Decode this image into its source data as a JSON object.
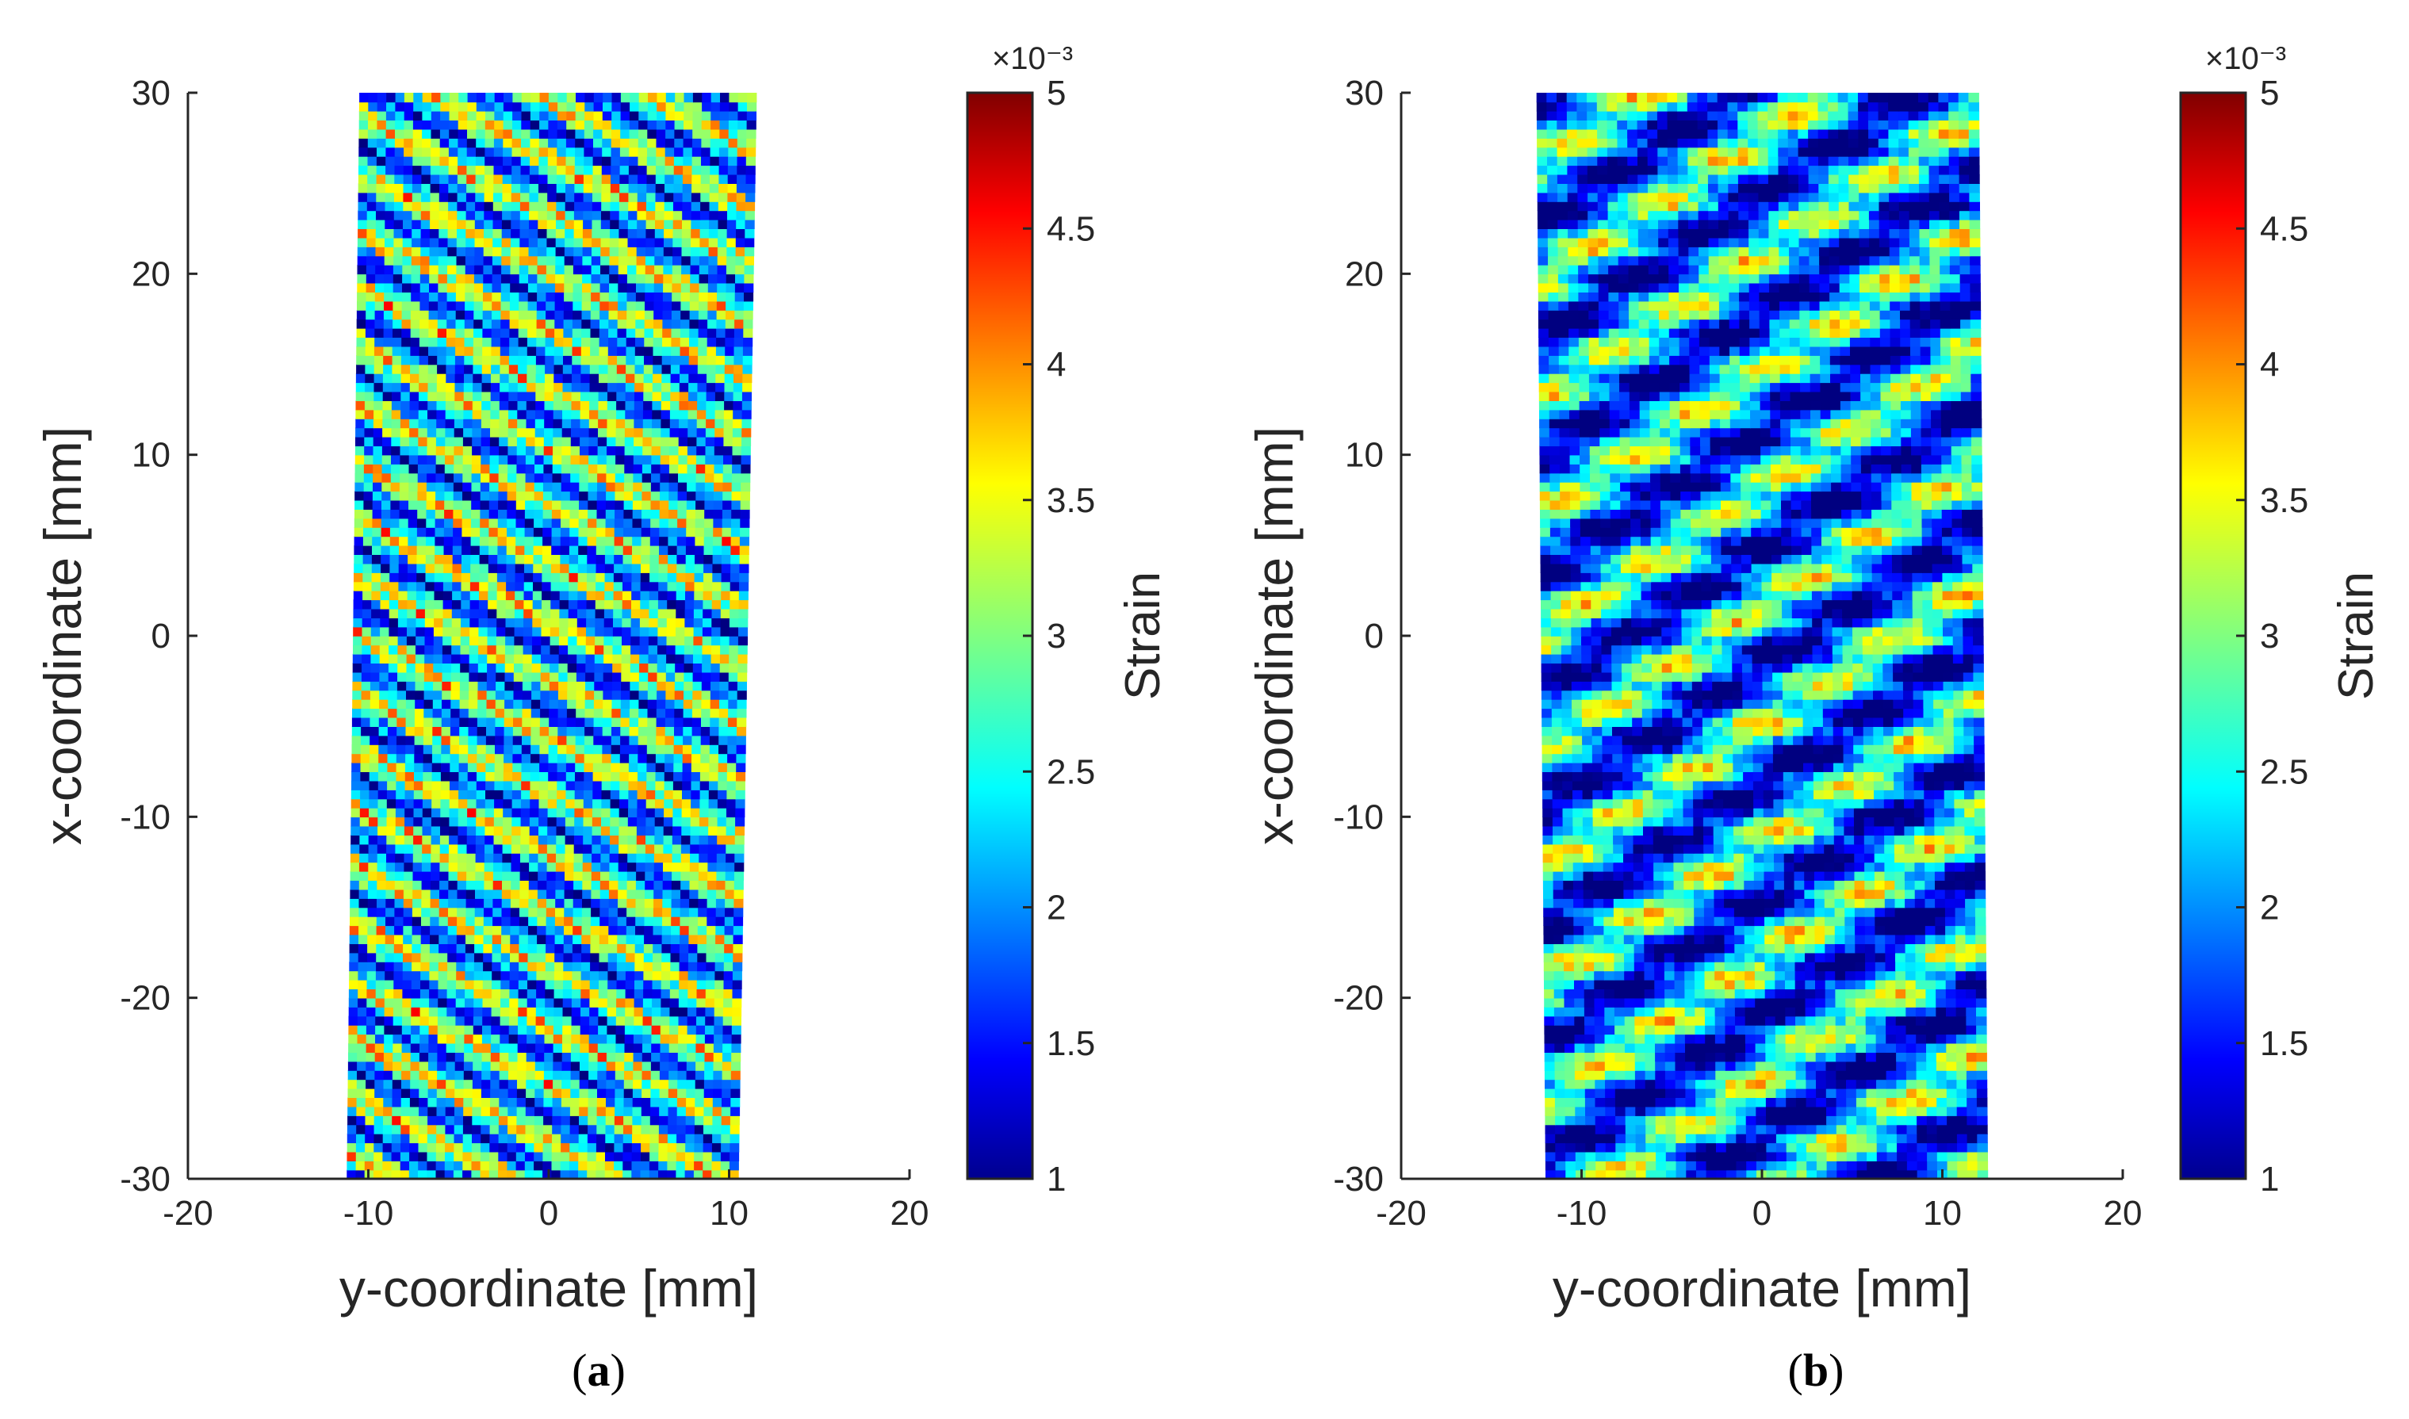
{
  "chart_data": [
    {
      "type": "heatmap",
      "panel": "a",
      "caption_letter": "a",
      "xlabel": "y-coordinate [mm]",
      "ylabel": "x-coordinate [mm]",
      "xlim": [
        -20,
        20
      ],
      "ylim": [
        -30,
        30
      ],
      "xticks": [
        "-20",
        "-10",
        "0",
        "10",
        "20"
      ],
      "yticks": [
        "-30",
        "-20",
        "-10",
        "0",
        "10",
        "20",
        "30"
      ],
      "data_region": {
        "x_at_top": [
          -10.5,
          11.5
        ],
        "x_at_bottom": [
          -11.2,
          10.5
        ],
        "y": [
          -30,
          30
        ]
      },
      "pattern": "diagonal bands descending to the right, fine mottled texture",
      "mean_strain_e3": 2.5,
      "band_slope_deg": -28,
      "band_period_mm": 3.2,
      "colorbar": {
        "label": "Strain",
        "multiplier": "×10⁻³",
        "range": [
          1,
          5
        ],
        "ticks": [
          "1",
          "1.5",
          "2",
          "2.5",
          "3",
          "3.5",
          "4",
          "4.5",
          "5"
        ],
        "colormap": "jet"
      }
    },
    {
      "type": "heatmap",
      "panel": "b",
      "caption_letter": "b",
      "xlabel": "y-coordinate [mm]",
      "ylabel": "x-coordinate [mm]",
      "xlim": [
        -20,
        20
      ],
      "ylim": [
        -30,
        30
      ],
      "xticks": [
        "-20",
        "-10",
        "0",
        "10",
        "20"
      ],
      "yticks": [
        "-30",
        "-20",
        "-10",
        "0",
        "10",
        "20",
        "30"
      ],
      "data_region": {
        "x_at_top": [
          -12.5,
          12
        ],
        "x_at_bottom": [
          -12,
          12.5
        ],
        "y": [
          -30,
          30
        ]
      },
      "pattern": "diagonal bands ascending to the right, wide low-strain blue stripes",
      "mean_strain_e3": 2.1,
      "band_slope_deg": 33,
      "band_period_mm": 6.5,
      "colorbar": {
        "label": "Strain",
        "multiplier": "×10⁻³",
        "range": [
          1,
          5
        ],
        "ticks": [
          "1",
          "1.5",
          "2",
          "2.5",
          "3",
          "3.5",
          "4",
          "4.5",
          "5"
        ],
        "colormap": "jet"
      }
    }
  ],
  "colors": {
    "axis": "#262626",
    "background": "#ffffff"
  }
}
